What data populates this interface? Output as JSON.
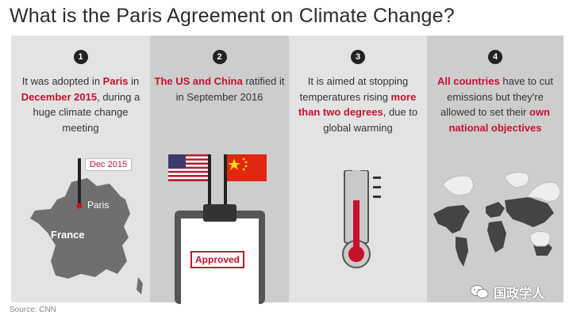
{
  "title": "What is the Paris Agreement on Climate Change?",
  "panels": [
    {
      "number": "1",
      "text": [
        "It was adopted in ",
        "Paris",
        " in ",
        "December 2015",
        ", during a huge climate change meeting"
      ],
      "flag_label": "Dec 2015",
      "city_label": "Paris",
      "country_label": "France",
      "icon": "france-map-icon"
    },
    {
      "number": "2",
      "text": [
        "The US and China",
        " ratified it in September 2016"
      ],
      "stamp_label": "Approved",
      "icon": "clipboard-icon"
    },
    {
      "number": "3",
      "text": [
        "It is aimed at stopping temperatures rising ",
        "more than two degrees",
        ", due to global warming"
      ],
      "icon": "thermometer-icon"
    },
    {
      "number": "4",
      "text": [
        "All countries",
        " have to cut emissions but they're allowed to set their ",
        "own national objectives"
      ],
      "icon": "world-map-icon"
    }
  ],
  "source": "Source: CNN",
  "watermark": "国政学人",
  "colors": {
    "accent": "#c8102e",
    "panel_light": "#e3e3e3",
    "panel_dark": "#cdcdcd"
  }
}
